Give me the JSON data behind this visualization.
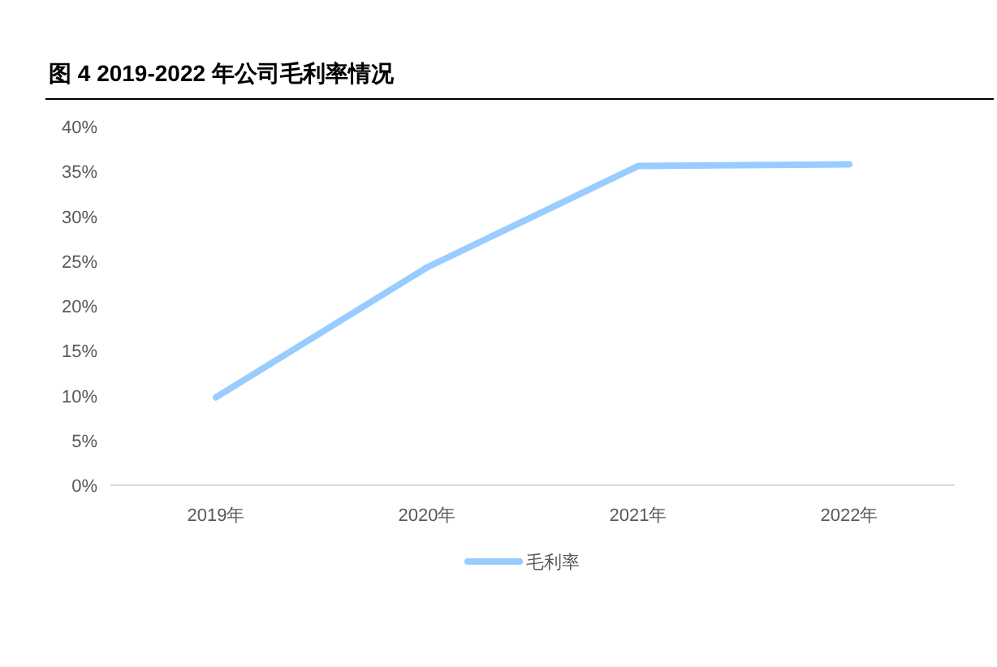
{
  "chart_data": {
    "type": "line",
    "title": "图 4 2019-2022 年公司毛利率情况",
    "categories": [
      "2019年",
      "2020年",
      "2021年",
      "2022年"
    ],
    "series": [
      {
        "name": "毛利率",
        "color": "#99ccff",
        "values": [
          9.8,
          24.3,
          35.6,
          35.8
        ]
      }
    ],
    "ylim": [
      0,
      40
    ],
    "yticks": [
      {
        "value": 0,
        "label": "0%"
      },
      {
        "value": 5,
        "label": "5%"
      },
      {
        "value": 10,
        "label": "10%"
      },
      {
        "value": 15,
        "label": "15%"
      },
      {
        "value": 20,
        "label": "20%"
      },
      {
        "value": 25,
        "label": "25%"
      },
      {
        "value": 30,
        "label": "30%"
      },
      {
        "value": 35,
        "label": "35%"
      },
      {
        "value": 40,
        "label": "40%"
      }
    ],
    "grid": false,
    "legend": "bottom",
    "marker": "none",
    "line_style": "solid"
  }
}
